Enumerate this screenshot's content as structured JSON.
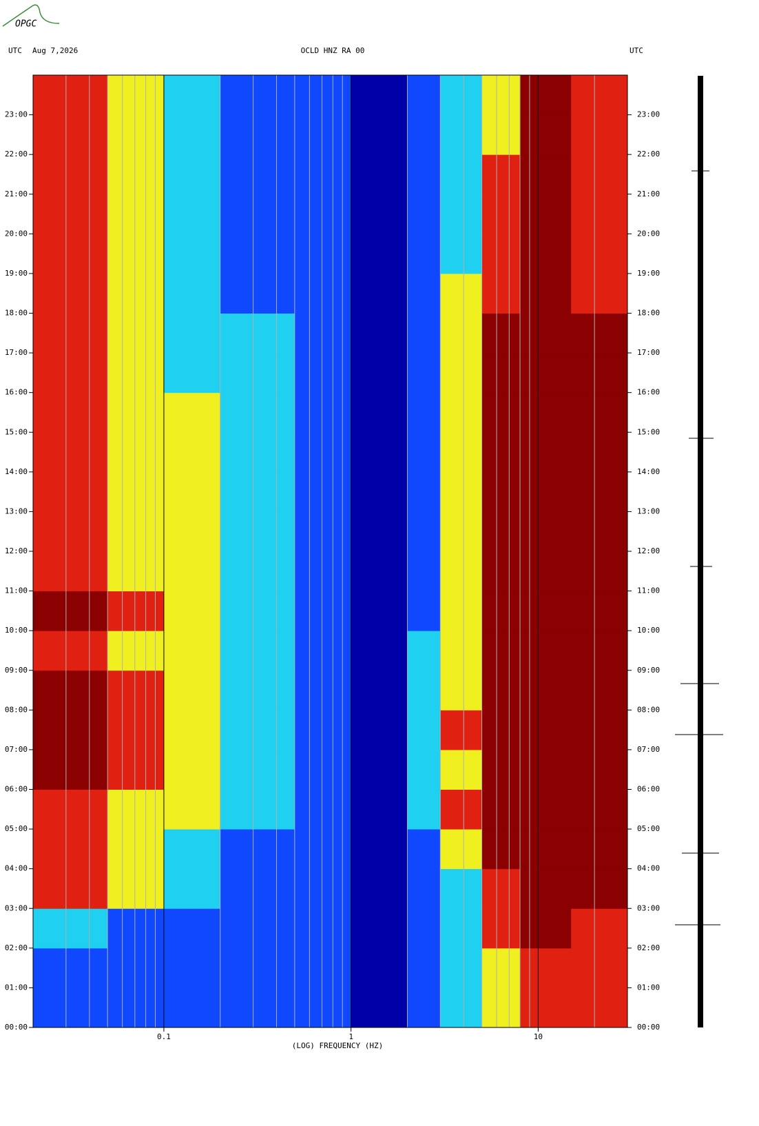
{
  "logo": "OPGC",
  "chart_data": {
    "type": "heatmap",
    "header_left": "UTC",
    "date": "Aug 7,2026",
    "title": "OCLD HNZ RA 00",
    "header_right": "UTC",
    "xlabel": "(LOG) FREQUENCY (HZ)",
    "log_x": true,
    "xlim": [
      0.02,
      30
    ],
    "xticks": [
      0.1,
      1,
      10
    ],
    "xminorticks": [
      0.03,
      0.04,
      0.05,
      0.06,
      0.07,
      0.08,
      0.09,
      0.2,
      0.3,
      0.4,
      0.5,
      0.6,
      0.7,
      0.8,
      0.9,
      2,
      3,
      4,
      5,
      6,
      7,
      8,
      9,
      20
    ],
    "ylim": [
      0,
      24
    ],
    "yticks": [
      {
        "value": 0,
        "label": "00:00"
      },
      {
        "value": 1,
        "label": "01:00"
      },
      {
        "value": 2,
        "label": "02:00"
      },
      {
        "value": 3,
        "label": "03:00"
      },
      {
        "value": 4,
        "label": "04:00"
      },
      {
        "value": 5,
        "label": "05:00"
      },
      {
        "value": 6,
        "label": "06:00"
      },
      {
        "value": 7,
        "label": "07:00"
      },
      {
        "value": 8,
        "label": "08:00"
      },
      {
        "value": 9,
        "label": "09:00"
      },
      {
        "value": 10,
        "label": "10:00"
      },
      {
        "value": 11,
        "label": "11:00"
      },
      {
        "value": 12,
        "label": "12:00"
      },
      {
        "value": 13,
        "label": "13:00"
      },
      {
        "value": 14,
        "label": "14:00"
      },
      {
        "value": 15,
        "label": "15:00"
      },
      {
        "value": 16,
        "label": "16:00"
      },
      {
        "value": 17,
        "label": "17:00"
      },
      {
        "value": 18,
        "label": "18:00"
      },
      {
        "value": 19,
        "label": "19:00"
      },
      {
        "value": 20,
        "label": "20:00"
      },
      {
        "value": 21,
        "label": "21:00"
      },
      {
        "value": 22,
        "label": "22:00"
      },
      {
        "value": 23,
        "label": "23:00"
      }
    ],
    "xbins": [
      0.02,
      0.05,
      0.1,
      0.2,
      0.5,
      1,
      2,
      3,
      5,
      8,
      15,
      30
    ],
    "ybins": [
      0,
      1,
      2,
      3,
      4,
      5,
      6,
      7,
      8,
      9,
      10,
      11,
      12,
      13,
      14,
      15,
      16,
      17,
      18,
      19,
      20,
      21,
      22,
      23,
      24
    ],
    "colors": [
      "#0000a8",
      "#1048ff",
      "#20d0f0",
      "#f0f020",
      "#e02010",
      "#8b0000"
    ],
    "values": [
      [
        1,
        1,
        1,
        1,
        1,
        0,
        1,
        2,
        3,
        4,
        4
      ],
      [
        1,
        1,
        1,
        1,
        1,
        0,
        1,
        2,
        3,
        4,
        4
      ],
      [
        2,
        1,
        1,
        1,
        1,
        0,
        1,
        2,
        4,
        5,
        4
      ],
      [
        4,
        3,
        2,
        1,
        1,
        0,
        1,
        2,
        4,
        5,
        5
      ],
      [
        4,
        3,
        2,
        1,
        1,
        0,
        1,
        3,
        5,
        5,
        5
      ],
      [
        4,
        3,
        3,
        2,
        1,
        0,
        2,
        4,
        5,
        5,
        5
      ],
      [
        5,
        4,
        3,
        2,
        1,
        0,
        2,
        3,
        5,
        5,
        5
      ],
      [
        5,
        4,
        3,
        2,
        1,
        0,
        2,
        4,
        5,
        5,
        5
      ],
      [
        5,
        4,
        3,
        2,
        1,
        0,
        2,
        3,
        5,
        5,
        5
      ],
      [
        4,
        3,
        3,
        2,
        1,
        0,
        2,
        3,
        5,
        5,
        5
      ],
      [
        5,
        4,
        3,
        2,
        1,
        0,
        1,
        3,
        5,
        5,
        5
      ],
      [
        4,
        3,
        3,
        2,
        1,
        0,
        1,
        3,
        5,
        5,
        5
      ],
      [
        4,
        3,
        3,
        2,
        1,
        0,
        1,
        3,
        5,
        5,
        5
      ],
      [
        4,
        3,
        3,
        2,
        1,
        0,
        1,
        3,
        5,
        5,
        5
      ],
      [
        4,
        3,
        3,
        2,
        1,
        0,
        1,
        3,
        5,
        5,
        5
      ],
      [
        4,
        3,
        3,
        2,
        1,
        0,
        1,
        3,
        5,
        5,
        5
      ],
      [
        4,
        3,
        2,
        2,
        1,
        0,
        1,
        3,
        5,
        5,
        5
      ],
      [
        4,
        3,
        2,
        2,
        1,
        0,
        1,
        3,
        5,
        5,
        5
      ],
      [
        4,
        3,
        2,
        1,
        1,
        0,
        1,
        3,
        4,
        5,
        4
      ],
      [
        4,
        3,
        2,
        1,
        1,
        0,
        1,
        2,
        4,
        5,
        4
      ],
      [
        4,
        3,
        2,
        1,
        1,
        0,
        1,
        2,
        4,
        5,
        4
      ],
      [
        4,
        3,
        2,
        1,
        1,
        0,
        1,
        2,
        4,
        5,
        4
      ],
      [
        4,
        3,
        2,
        1,
        1,
        0,
        1,
        2,
        3,
        5,
        4
      ],
      [
        4,
        3,
        2,
        1,
        1,
        0,
        1,
        2,
        3,
        5,
        4
      ]
    ]
  }
}
